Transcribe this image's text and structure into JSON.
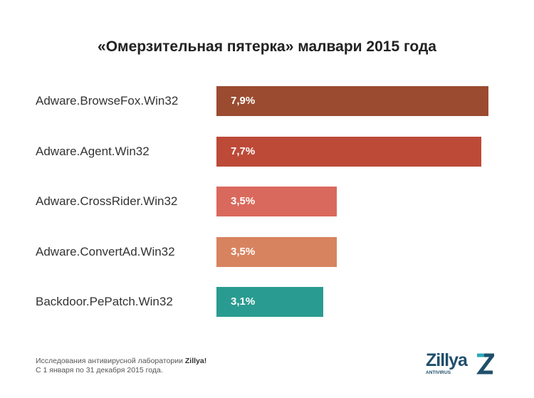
{
  "chart_data": {
    "type": "bar",
    "orientation": "horizontal",
    "title": "«Омерзительная пятерка» малвари 2015 года",
    "categories": [
      "Adware.BrowseFox.Win32",
      "Adware.Agent.Win32",
      "Adware.CrossRider.Win32",
      "Adware.ConvertAd.Win32",
      "Backdoor.PePatch.Win32"
    ],
    "values": [
      7.9,
      7.7,
      3.5,
      3.5,
      3.1
    ],
    "value_labels": [
      "7,9%",
      "7,7%",
      "3,5%",
      "3,5%",
      "3,1%"
    ],
    "colors": [
      "#9a4b30",
      "#bd4a37",
      "#d9695c",
      "#d88360",
      "#2a9b90"
    ],
    "unit": "%",
    "xlim": [
      0,
      7.9
    ]
  },
  "footer": {
    "line1_prefix": "Исследования антивирусной лаборатории ",
    "line1_brand": "Zillya!",
    "line2": "С 1 января по 31 декабря 2015 года."
  },
  "logo": {
    "name": "Zillya",
    "sub": "ANTIVIRUS"
  }
}
